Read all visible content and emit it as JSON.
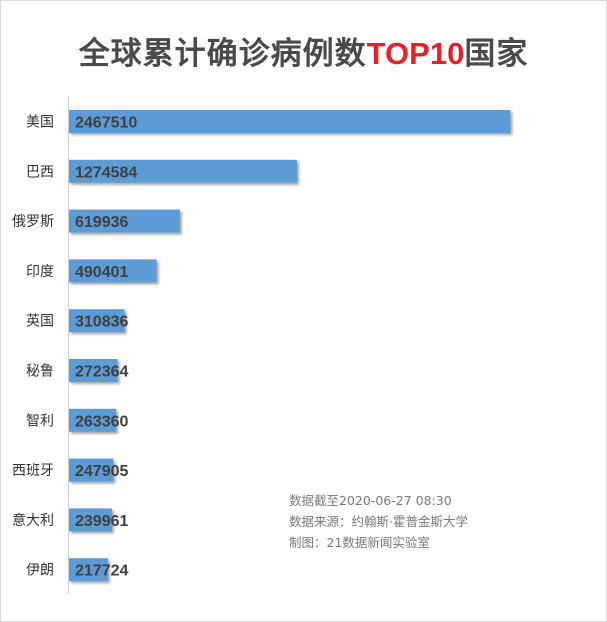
{
  "title": {
    "main": "全球累计确诊病例数",
    "highlight": "TOP10",
    "suffix": "国家",
    "highlight_color": "#e8202a"
  },
  "bar_color": "#5b9bd5",
  "notes": {
    "data_cutoff": "数据截至2020-06-27 08:30",
    "source": "数据来源：约翰斯·霍普金斯大学",
    "maker": "制图：21数据新闻实验室"
  },
  "chart_data": {
    "type": "bar",
    "orientation": "horizontal",
    "title": "全球累计确诊病例数TOP10国家",
    "categories": [
      "美国",
      "巴西",
      "俄罗斯",
      "印度",
      "英国",
      "秘鲁",
      "智利",
      "西班牙",
      "意大利",
      "伊朗"
    ],
    "values": [
      2467510,
      1274584,
      619936,
      490401,
      310836,
      272364,
      263360,
      247905,
      239961,
      217724
    ],
    "xlim": [
      0,
      2650000
    ],
    "grid": false,
    "legend": "none"
  }
}
